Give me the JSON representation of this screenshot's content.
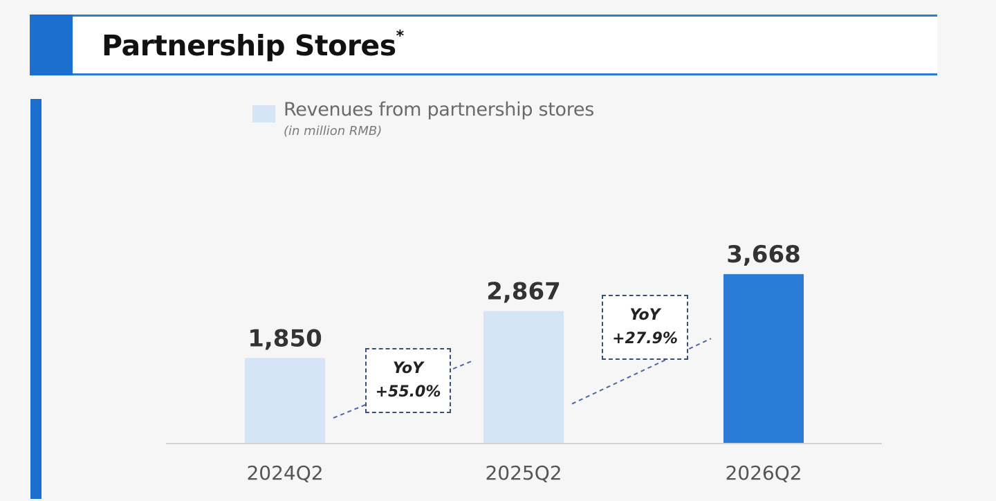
{
  "header": {
    "title": "Partnership Stores",
    "title_mark": "*"
  },
  "legend": {
    "label": "Revenues from partnership stores",
    "sublabel": "(in million RMB)"
  },
  "colors": {
    "accent": "#1b6fcf",
    "bar_light": "#d5e4f6",
    "bar_highlight": "#2a7cd6",
    "axis": "#d4d4d4",
    "dashed_line": "#4a68a8"
  },
  "chart_data": {
    "type": "bar",
    "categories": [
      "2024Q2",
      "2025Q2",
      "2026Q2"
    ],
    "series": [
      {
        "name": "Revenues from partnership stores",
        "values": [
          1850,
          2867,
          3668
        ],
        "value_labels": [
          "1,850",
          "2,867",
          "3,668"
        ]
      }
    ],
    "highlight_index": 2,
    "ylim": [
      0,
      5000
    ],
    "grid": false,
    "legend_position": "top",
    "annotations": [
      {
        "from": "2024Q2",
        "to": "2025Q2",
        "line1": "YoY",
        "line2": "+55.0%"
      },
      {
        "from": "2025Q2",
        "to": "2026Q2",
        "line1": "YoY",
        "line2": "+27.9%"
      }
    ]
  }
}
